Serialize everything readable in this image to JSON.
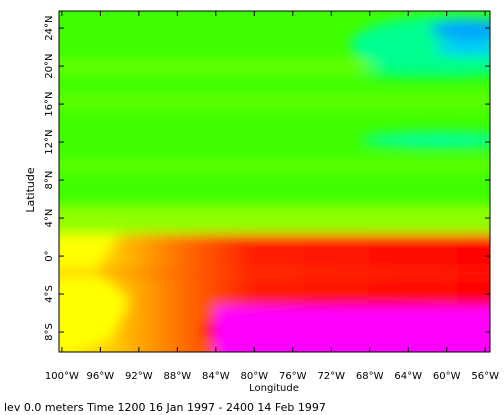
{
  "chart_data": {
    "type": "heatmap",
    "x_label": "Longitude",
    "y_label": "Latitude",
    "caption": "lev 0.0 meters Time 1200 16 Jan 1997 - 2400 14 Feb 1997",
    "xlim": [
      -100.3,
      -55.5
    ],
    "xticks": [
      {
        "value": -100,
        "label": "100°W"
      },
      {
        "value": -96,
        "label": "96°W"
      },
      {
        "value": -92,
        "label": "92°W"
      },
      {
        "value": -88,
        "label": "88°W"
      },
      {
        "value": -84,
        "label": "84°W"
      },
      {
        "value": -80,
        "label": "80°W"
      },
      {
        "value": -76,
        "label": "76°W"
      },
      {
        "value": -72,
        "label": "72°W"
      },
      {
        "value": -68,
        "label": "68°W"
      },
      {
        "value": -64,
        "label": "64°W"
      },
      {
        "value": -60,
        "label": "60°W"
      },
      {
        "value": -56,
        "label": "56°W"
      }
    ],
    "ylim": [
      -10.1,
      25.8
    ],
    "yticks": [
      {
        "value": -8,
        "label": "8°S"
      },
      {
        "value": -4,
        "label": "4°S"
      },
      {
        "value": 0,
        "label": "0°"
      },
      {
        "value": 4,
        "label": "4°N"
      },
      {
        "value": 8,
        "label": "8°N"
      },
      {
        "value": 12,
        "label": "12°N"
      },
      {
        "value": 16,
        "label": "16°N"
      },
      {
        "value": 20,
        "label": "20°N"
      },
      {
        "value": 24,
        "label": "24°N"
      }
    ]
  }
}
